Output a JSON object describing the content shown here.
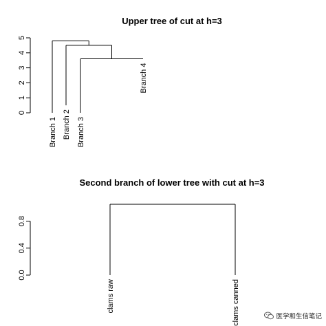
{
  "chart_data": [
    {
      "type": "dendrogram",
      "title": "Upper tree of cut at h=3",
      "ylim": [
        0,
        5
      ],
      "yticks": [
        "0",
        "1",
        "2",
        "3",
        "4",
        "5"
      ],
      "leaves": [
        "Branch 1",
        "Branch 2",
        "Branch 3",
        "Branch 4"
      ],
      "leaf_heights": [
        0,
        0.5,
        0,
        3.6
      ],
      "merges": [
        {
          "left": "Branch 3",
          "right": "Branch 4",
          "height": 3.6
        },
        {
          "left": "Branch 2",
          "right": "merge-1",
          "height": 4.5
        },
        {
          "left": "Branch 1",
          "right": "merge-2",
          "height": 4.8
        }
      ]
    },
    {
      "type": "dendrogram",
      "title": "Second branch of lower tree with cut at h=3",
      "ylim": [
        0,
        1.05
      ],
      "yticks": [
        "0.0",
        "0.4",
        "0.8"
      ],
      "leaves": [
        "clams raw",
        "clams canned"
      ],
      "leaf_heights": [
        0,
        0
      ],
      "merges": [
        {
          "left": "clams raw",
          "right": "clams canned",
          "height": 1.05
        }
      ]
    }
  ],
  "watermark": {
    "text": "医学和生信笔记",
    "logo": "wechat-logo-icon"
  }
}
